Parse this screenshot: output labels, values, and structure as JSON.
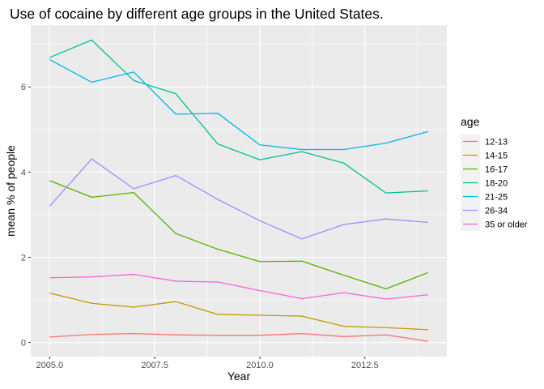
{
  "chart_data": {
    "type": "line",
    "title": "Use of cocaine by different age groups in the United States.",
    "xlabel": "Year",
    "ylabel": "mean % of people",
    "xlim": [
      2004.55,
      2014.45
    ],
    "ylim": [
      -0.33,
      7.45
    ],
    "x_ticks": [
      2005,
      2007.5,
      2010,
      2012.5
    ],
    "x_tick_labels": [
      "2005.0",
      "2007.5",
      "2010.0",
      "2012.5"
    ],
    "y_ticks": [
      0,
      2,
      4,
      6
    ],
    "y_tick_labels": [
      "0",
      "2",
      "4",
      "6"
    ],
    "grid": true,
    "legend": {
      "title": "age",
      "position": "right"
    },
    "x": [
      2005,
      2006,
      2007,
      2008,
      2009,
      2010,
      2011,
      2012,
      2013,
      2014
    ],
    "series": [
      {
        "name": "12-13",
        "color": "#F8766D",
        "values": [
          0.13,
          0.19,
          0.21,
          0.18,
          0.17,
          0.17,
          0.21,
          0.14,
          0.18,
          0.03
        ]
      },
      {
        "name": "14-15",
        "color": "#C49A00",
        "values": [
          1.16,
          0.92,
          0.83,
          0.96,
          0.66,
          0.64,
          0.62,
          0.38,
          0.35,
          0.3
        ]
      },
      {
        "name": "16-17",
        "color": "#53B400",
        "values": [
          3.8,
          3.41,
          3.52,
          2.56,
          2.19,
          1.9,
          1.91,
          1.58,
          1.26,
          1.64
        ]
      },
      {
        "name": "18-20",
        "color": "#00C094",
        "values": [
          6.69,
          7.1,
          6.15,
          5.84,
          4.66,
          4.29,
          4.48,
          4.21,
          3.51,
          3.56
        ]
      },
      {
        "name": "21-25",
        "color": "#00B6EB",
        "values": [
          6.64,
          6.11,
          6.35,
          5.36,
          5.38,
          4.64,
          4.53,
          4.53,
          4.68,
          4.95
        ]
      },
      {
        "name": "26-34",
        "color": "#A58AFF",
        "values": [
          3.2,
          4.31,
          3.61,
          3.92,
          3.36,
          2.86,
          2.43,
          2.77,
          2.9,
          2.82
        ]
      },
      {
        "name": "35 or older",
        "color": "#FB61D7",
        "values": [
          1.52,
          1.54,
          1.6,
          1.44,
          1.42,
          1.22,
          1.03,
          1.17,
          1.02,
          1.12
        ]
      }
    ]
  }
}
